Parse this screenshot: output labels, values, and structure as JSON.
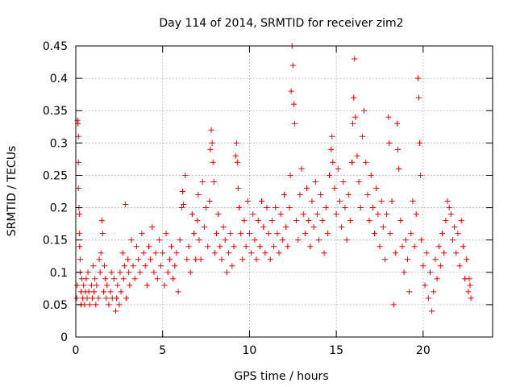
{
  "chart_data": {
    "type": "scatter",
    "title": "Day 114 of 2014, SRMTID for receiver zim2",
    "xlabel": "GPS time / hours",
    "ylabel": "SRMTID / TECUs",
    "xlim": [
      0,
      24
    ],
    "ylim": [
      0,
      0.45
    ],
    "xticks": [
      0,
      5,
      10,
      15,
      20
    ],
    "xtick_labels": [
      "0",
      "5",
      "10",
      "15",
      "20"
    ],
    "yticks": [
      0,
      0.05,
      0.1,
      0.15,
      0.2,
      0.25,
      0.3,
      0.35,
      0.4,
      0.45
    ],
    "ytick_labels": [
      "0",
      "0.05",
      "0.1",
      "0.15",
      "0.2",
      "0.25",
      "0.3",
      "0.35",
      "0.4",
      "0.45"
    ],
    "grid": true,
    "marker": "+",
    "color": "#ee0000",
    "series": [
      {
        "name": "SRMTID",
        "points": [
          [
            0.05,
            0.06
          ],
          [
            0.08,
            0.08
          ],
          [
            0.1,
            0.335
          ],
          [
            0.12,
            0.33
          ],
          [
            0.15,
            0.31
          ],
          [
            0.15,
            0.27
          ],
          [
            0.15,
            0.23
          ],
          [
            0.18,
            0.2
          ],
          [
            0.2,
            0.19
          ],
          [
            0.2,
            0.16
          ],
          [
            0.22,
            0.14
          ],
          [
            0.25,
            0.12
          ],
          [
            0.25,
            0.1
          ],
          [
            0.3,
            0.07
          ],
          [
            0.3,
            0.05
          ],
          [
            0.35,
            0.09
          ],
          [
            0.4,
            0.06
          ],
          [
            0.45,
            0.08
          ],
          [
            0.5,
            0.05
          ],
          [
            0.55,
            0.07
          ],
          [
            0.6,
            0.09
          ],
          [
            0.65,
            0.06
          ],
          [
            0.7,
            0.1
          ],
          [
            0.75,
            0.07
          ],
          [
            0.8,
            0.05
          ],
          [
            0.9,
            0.08
          ],
          [
            0.95,
            0.06
          ],
          [
            1.0,
            0.11
          ],
          [
            1.05,
            0.07
          ],
          [
            1.1,
            0.09
          ],
          [
            1.15,
            0.05
          ],
          [
            1.2,
            0.08
          ],
          [
            1.3,
            0.06
          ],
          [
            1.35,
            0.12
          ],
          [
            1.4,
            0.1
          ],
          [
            1.45,
            0.13
          ],
          [
            1.5,
            0.18
          ],
          [
            1.55,
            0.16
          ],
          [
            1.6,
            0.07
          ],
          [
            1.65,
            0.11
          ],
          [
            1.7,
            0.09
          ],
          [
            1.75,
            0.06
          ],
          [
            1.8,
            0.08
          ],
          [
            1.9,
            0.05
          ],
          [
            2.0,
            0.07
          ],
          [
            2.05,
            0.1
          ],
          [
            2.1,
            0.06
          ],
          [
            2.2,
            0.09
          ],
          [
            2.3,
            0.04
          ],
          [
            2.35,
            0.06
          ],
          [
            2.4,
            0.08
          ],
          [
            2.5,
            0.05
          ],
          [
            2.55,
            0.1
          ],
          [
            2.6,
            0.07
          ],
          [
            2.7,
            0.13
          ],
          [
            2.75,
            0.09
          ],
          [
            2.8,
            0.11
          ],
          [
            2.85,
            0.205
          ],
          [
            2.9,
            0.06
          ],
          [
            3.0,
            0.12
          ],
          [
            3.05,
            0.1
          ],
          [
            3.1,
            0.08
          ],
          [
            3.2,
            0.15
          ],
          [
            3.3,
            0.11
          ],
          [
            3.4,
            0.09
          ],
          [
            3.5,
            0.14
          ],
          [
            3.6,
            0.12
          ],
          [
            3.7,
            0.1
          ],
          [
            3.8,
            0.16
          ],
          [
            3.9,
            0.13
          ],
          [
            4.0,
            0.11
          ],
          [
            4.1,
            0.08
          ],
          [
            4.2,
            0.14
          ],
          [
            4.3,
            0.12
          ],
          [
            4.4,
            0.17
          ],
          [
            4.5,
            0.1
          ],
          [
            4.6,
            0.13
          ],
          [
            4.7,
            0.09
          ],
          [
            4.8,
            0.15
          ],
          [
            4.9,
            0.11
          ],
          [
            5.0,
            0.13
          ],
          [
            5.1,
            0.08
          ],
          [
            5.2,
            0.16
          ],
          [
            5.3,
            0.1
          ],
          [
            5.4,
            0.12
          ],
          [
            5.5,
            0.14
          ],
          [
            5.6,
            0.09
          ],
          [
            5.7,
            0.11
          ],
          [
            5.8,
            0.13
          ],
          [
            5.9,
            0.07
          ],
          [
            6.0,
            0.15
          ],
          [
            6.1,
            0.2
          ],
          [
            6.15,
            0.225
          ],
          [
            6.2,
            0.205
          ],
          [
            6.3,
            0.25
          ],
          [
            6.4,
            0.12
          ],
          [
            6.5,
            0.14
          ],
          [
            6.6,
            0.1
          ],
          [
            6.7,
            0.19
          ],
          [
            6.8,
            0.16
          ],
          [
            6.9,
            0.12
          ],
          [
            7.0,
            0.18
          ],
          [
            7.05,
            0.22
          ],
          [
            7.1,
            0.15
          ],
          [
            7.2,
            0.12
          ],
          [
            7.3,
            0.24
          ],
          [
            7.4,
            0.17
          ],
          [
            7.5,
            0.2
          ],
          [
            7.6,
            0.14
          ],
          [
            7.7,
            0.21
          ],
          [
            7.75,
            0.29
          ],
          [
            7.8,
            0.32
          ],
          [
            7.85,
            0.3
          ],
          [
            7.9,
            0.27
          ],
          [
            7.95,
            0.24
          ],
          [
            8.0,
            0.13
          ],
          [
            8.1,
            0.16
          ],
          [
            8.2,
            0.19
          ],
          [
            8.3,
            0.14
          ],
          [
            8.4,
            0.12
          ],
          [
            8.5,
            0.17
          ],
          [
            8.6,
            0.15
          ],
          [
            8.7,
            0.1
          ],
          [
            8.8,
            0.13
          ],
          [
            8.9,
            0.16
          ],
          [
            9.0,
            0.11
          ],
          [
            9.1,
            0.14
          ],
          [
            9.2,
            0.28
          ],
          [
            9.25,
            0.3
          ],
          [
            9.3,
            0.27
          ],
          [
            9.35,
            0.23
          ],
          [
            9.4,
            0.2
          ],
          [
            9.5,
            0.16
          ],
          [
            9.6,
            0.12
          ],
          [
            9.7,
            0.18
          ],
          [
            9.8,
            0.14
          ],
          [
            9.9,
            0.21
          ],
          [
            10.0,
            0.16
          ],
          [
            10.1,
            0.13
          ],
          [
            10.2,
            0.19
          ],
          [
            10.3,
            0.15
          ],
          [
            10.4,
            0.12
          ],
          [
            10.5,
            0.18
          ],
          [
            10.6,
            0.14
          ],
          [
            10.7,
            0.21
          ],
          [
            10.8,
            0.17
          ],
          [
            10.9,
            0.13
          ],
          [
            11.0,
            0.2
          ],
          [
            11.1,
            0.16
          ],
          [
            11.2,
            0.12
          ],
          [
            11.3,
            0.18
          ],
          [
            11.4,
            0.14
          ],
          [
            11.5,
            0.2
          ],
          [
            11.6,
            0.16
          ],
          [
            11.7,
            0.13
          ],
          [
            11.8,
            0.19
          ],
          [
            11.9,
            0.15
          ],
          [
            12.0,
            0.22
          ],
          [
            12.1,
            0.17
          ],
          [
            12.2,
            0.14
          ],
          [
            12.3,
            0.2
          ],
          [
            12.35,
            0.25
          ],
          [
            12.4,
            0.38
          ],
          [
            12.45,
            0.45
          ],
          [
            12.5,
            0.42
          ],
          [
            12.55,
            0.36
          ],
          [
            12.6,
            0.33
          ],
          [
            12.7,
            0.18
          ],
          [
            12.8,
            0.15
          ],
          [
            12.9,
            0.22
          ],
          [
            13.0,
            0.26
          ],
          [
            13.1,
            0.19
          ],
          [
            13.2,
            0.16
          ],
          [
            13.3,
            0.23
          ],
          [
            13.4,
            0.18
          ],
          [
            13.5,
            0.14
          ],
          [
            13.6,
            0.21
          ],
          [
            13.7,
            0.17
          ],
          [
            13.8,
            0.24
          ],
          [
            13.9,
            0.19
          ],
          [
            14.0,
            0.15
          ],
          [
            14.1,
            0.22
          ],
          [
            14.2,
            0.18
          ],
          [
            14.3,
            0.13
          ],
          [
            14.4,
            0.2
          ],
          [
            14.5,
            0.16
          ],
          [
            14.6,
            0.25
          ],
          [
            14.7,
            0.29
          ],
          [
            14.75,
            0.31
          ],
          [
            14.8,
            0.27
          ],
          [
            14.9,
            0.23
          ],
          [
            15.0,
            0.19
          ],
          [
            15.1,
            0.26
          ],
          [
            15.2,
            0.21
          ],
          [
            15.3,
            0.17
          ],
          [
            15.4,
            0.24
          ],
          [
            15.5,
            0.2
          ],
          [
            15.6,
            0.15
          ],
          [
            15.7,
            0.22
          ],
          [
            15.8,
            0.18
          ],
          [
            15.9,
            0.27
          ],
          [
            15.95,
            0.33
          ],
          [
            16.0,
            0.37
          ],
          [
            16.05,
            0.43
          ],
          [
            16.1,
            0.34
          ],
          [
            16.2,
            0.28
          ],
          [
            16.3,
            0.24
          ],
          [
            16.4,
            0.2
          ],
          [
            16.5,
            0.31
          ],
          [
            16.6,
            0.35
          ],
          [
            16.7,
            0.27
          ],
          [
            16.8,
            0.22
          ],
          [
            16.9,
            0.18
          ],
          [
            17.0,
            0.25
          ],
          [
            17.1,
            0.2
          ],
          [
            17.2,
            0.16
          ],
          [
            17.3,
            0.23
          ],
          [
            17.4,
            0.19
          ],
          [
            17.5,
            0.14
          ],
          [
            17.6,
            0.21
          ],
          [
            17.7,
            0.17
          ],
          [
            17.8,
            0.12
          ],
          [
            17.9,
            0.19
          ],
          [
            18.0,
            0.34
          ],
          [
            18.05,
            0.3
          ],
          [
            18.1,
            0.16
          ],
          [
            18.2,
            0.21
          ],
          [
            18.3,
            0.05
          ],
          [
            18.4,
            0.13
          ],
          [
            18.5,
            0.33
          ],
          [
            18.55,
            0.29
          ],
          [
            18.6,
            0.26
          ],
          [
            18.7,
            0.18
          ],
          [
            18.8,
            0.14
          ],
          [
            18.9,
            0.1
          ],
          [
            19.0,
            0.15
          ],
          [
            19.1,
            0.12
          ],
          [
            19.2,
            0.07
          ],
          [
            19.3,
            0.16
          ],
          [
            19.4,
            0.21
          ],
          [
            19.5,
            0.14
          ],
          [
            19.6,
            0.19
          ],
          [
            19.7,
            0.4
          ],
          [
            19.75,
            0.37
          ],
          [
            19.8,
            0.3
          ],
          [
            19.85,
            0.25
          ],
          [
            19.9,
            0.15
          ],
          [
            20.0,
            0.11
          ],
          [
            20.1,
            0.08
          ],
          [
            20.2,
            0.13
          ],
          [
            20.3,
            0.06
          ],
          [
            20.4,
            0.1
          ],
          [
            20.5,
            0.04
          ],
          [
            20.6,
            0.07
          ],
          [
            20.7,
            0.12
          ],
          [
            20.8,
            0.09
          ],
          [
            20.9,
            0.14
          ],
          [
            21.0,
            0.11
          ],
          [
            21.1,
            0.16
          ],
          [
            21.2,
            0.13
          ],
          [
            21.3,
            0.18
          ],
          [
            21.4,
            0.21
          ],
          [
            21.5,
            0.2
          ],
          [
            21.6,
            0.19
          ],
          [
            21.7,
            0.15
          ],
          [
            21.8,
            0.17
          ],
          [
            21.9,
            0.13
          ],
          [
            22.0,
            0.16
          ],
          [
            22.1,
            0.11
          ],
          [
            22.2,
            0.18
          ],
          [
            22.3,
            0.14
          ],
          [
            22.4,
            0.09
          ],
          [
            22.5,
            0.12
          ],
          [
            22.6,
            0.07
          ],
          [
            22.65,
            0.09
          ],
          [
            22.7,
            0.08
          ],
          [
            22.75,
            0.06
          ]
        ]
      }
    ]
  }
}
